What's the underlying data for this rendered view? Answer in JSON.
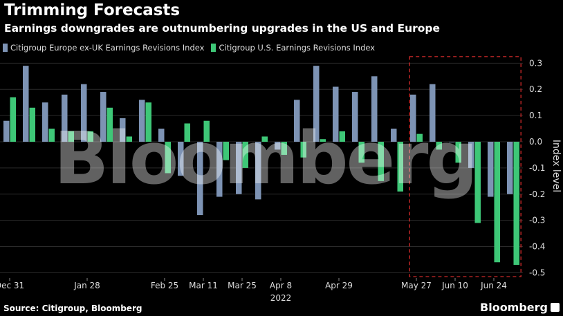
{
  "title": "Trimming Forecasts",
  "subtitle": "Earnings downgrades are outnumbering upgrades in the US and Europe",
  "source": "Source: Citigroup, Bloomberg",
  "brand": "Bloomberg",
  "watermark": "Bloomberg",
  "colors": {
    "europe": "#7d93b4",
    "us": "#3ec777",
    "highlight_box": "#d62a2a",
    "grid": "#2a2a2a"
  },
  "chart_data": {
    "type": "bar",
    "title": "Trimming Forecasts",
    "ylabel": "Index level",
    "ylim": [
      -0.52,
      0.33
    ],
    "yticks": [
      0.3,
      0.2,
      0.1,
      0.0,
      -0.1,
      -0.2,
      -0.3,
      -0.4,
      -0.5
    ],
    "ytick_labels": [
      "0.3",
      "0.2",
      "0.1",
      "0.0",
      "-0.1",
      "-0.2",
      "-0.3",
      "-0.4",
      "-0.5"
    ],
    "x_tick_labels": [
      {
        "label": "Dec 31",
        "index": 0
      },
      {
        "label": "Jan 28",
        "index": 4
      },
      {
        "label": "Feb 25",
        "index": 8
      },
      {
        "label": "Mar 11",
        "index": 10
      },
      {
        "label": "Mar 25",
        "index": 12
      },
      {
        "label": "Apr 8",
        "index": 14
      },
      {
        "label": "Apr 29",
        "index": 17
      },
      {
        "label": "May 27",
        "index": 21
      },
      {
        "label": "Jun 10",
        "index": 23
      },
      {
        "label": "Jun 24",
        "index": 25
      }
    ],
    "year_label": "2022",
    "year_label_index": 14,
    "highlight_range": [
      21,
      26
    ],
    "series": [
      {
        "name": "Citigroup Europe ex-UK Earnings Revisions Index",
        "values": [
          0.08,
          0.29,
          0.15,
          0.18,
          0.22,
          0.19,
          0.09,
          0.16,
          0.05,
          -0.13,
          -0.28,
          -0.21,
          -0.2,
          -0.22,
          -0.03,
          0.16,
          0.29,
          0.21,
          0.19,
          0.25,
          0.05,
          0.18,
          0.22,
          0.0,
          -0.1,
          -0.21,
          -0.2
        ]
      },
      {
        "name": "Citigroup U.S. Earnings Revisions Index",
        "values": [
          0.17,
          0.13,
          0.05,
          0.04,
          0.04,
          0.13,
          0.02,
          0.15,
          -0.12,
          0.07,
          0.08,
          -0.07,
          -0.1,
          0.02,
          -0.05,
          -0.06,
          0.01,
          0.04,
          -0.08,
          -0.15,
          -0.19,
          0.03,
          -0.03,
          -0.08,
          -0.31,
          -0.46,
          -0.47
        ]
      }
    ]
  }
}
